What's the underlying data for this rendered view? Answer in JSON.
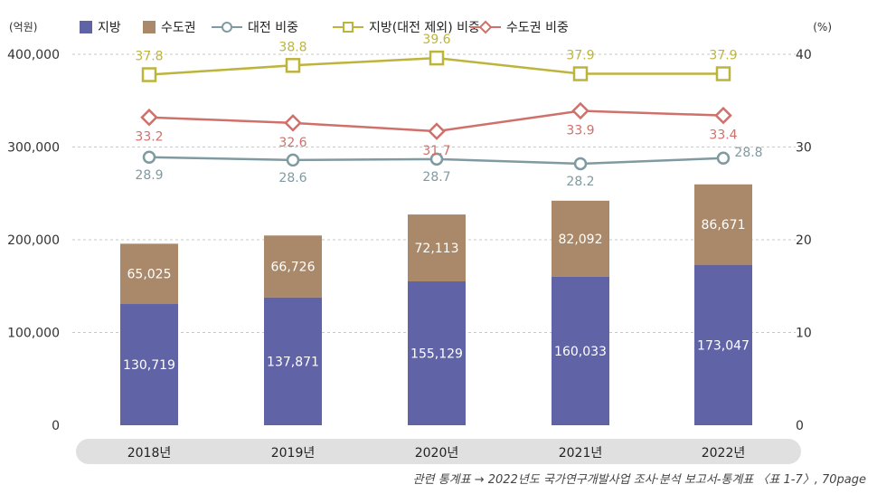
{
  "chart_data": {
    "type": "bar",
    "stacked": true,
    "categories": [
      "2018년",
      "2019년",
      "2020년",
      "2021년",
      "2022년"
    ],
    "y_left": {
      "unit": "(억원)",
      "ylim": [
        0,
        400000
      ],
      "ticks": [
        "0",
        "100,000",
        "200,000",
        "300,000",
        "400,000"
      ]
    },
    "y_right": {
      "unit": "(%)",
      "ylim": [
        0,
        40
      ],
      "ticks": [
        "0",
        "10",
        "20",
        "30",
        "40"
      ]
    },
    "bar_series": [
      {
        "name": "지방",
        "color": "#6063a6",
        "values": [
          130719,
          137871,
          155129,
          160033,
          173047
        ],
        "labels": [
          "130,719",
          "137,871",
          "155,129",
          "160,033",
          "173,047"
        ]
      },
      {
        "name": "수도권",
        "color": "#a9896a",
        "values": [
          65025,
          66726,
          72113,
          82092,
          86671
        ],
        "labels": [
          "65,025",
          "66,726",
          "72,113",
          "82,092",
          "86,671"
        ]
      }
    ],
    "line_series": [
      {
        "name": "대전 비중",
        "color": "#7f9aa0",
        "marker": "circle",
        "values": [
          28.9,
          28.6,
          28.7,
          28.2,
          28.8
        ],
        "labels": [
          "28.9",
          "28.6",
          "28.7",
          "28.2",
          "28.8"
        ]
      },
      {
        "name": "지방(대전 제외) 비중",
        "color": "#bdb43c",
        "marker": "square",
        "values": [
          37.8,
          38.8,
          39.6,
          37.9,
          37.9
        ],
        "labels": [
          "37.8",
          "38.8",
          "39.6",
          "37.9",
          "37.9"
        ]
      },
      {
        "name": "수도권 비중",
        "color": "#d0706a",
        "marker": "diamond",
        "values": [
          33.2,
          32.6,
          31.7,
          33.9,
          33.4
        ],
        "labels": [
          "33.2",
          "32.6",
          "31.7",
          "33.9",
          "33.4"
        ]
      }
    ],
    "grid": true,
    "legend": "top"
  },
  "source": "관련 통계표 → 2022년도 국가연구개발사업 조사·분석 보고서-통계표 〈표 1-7〉, 70page"
}
